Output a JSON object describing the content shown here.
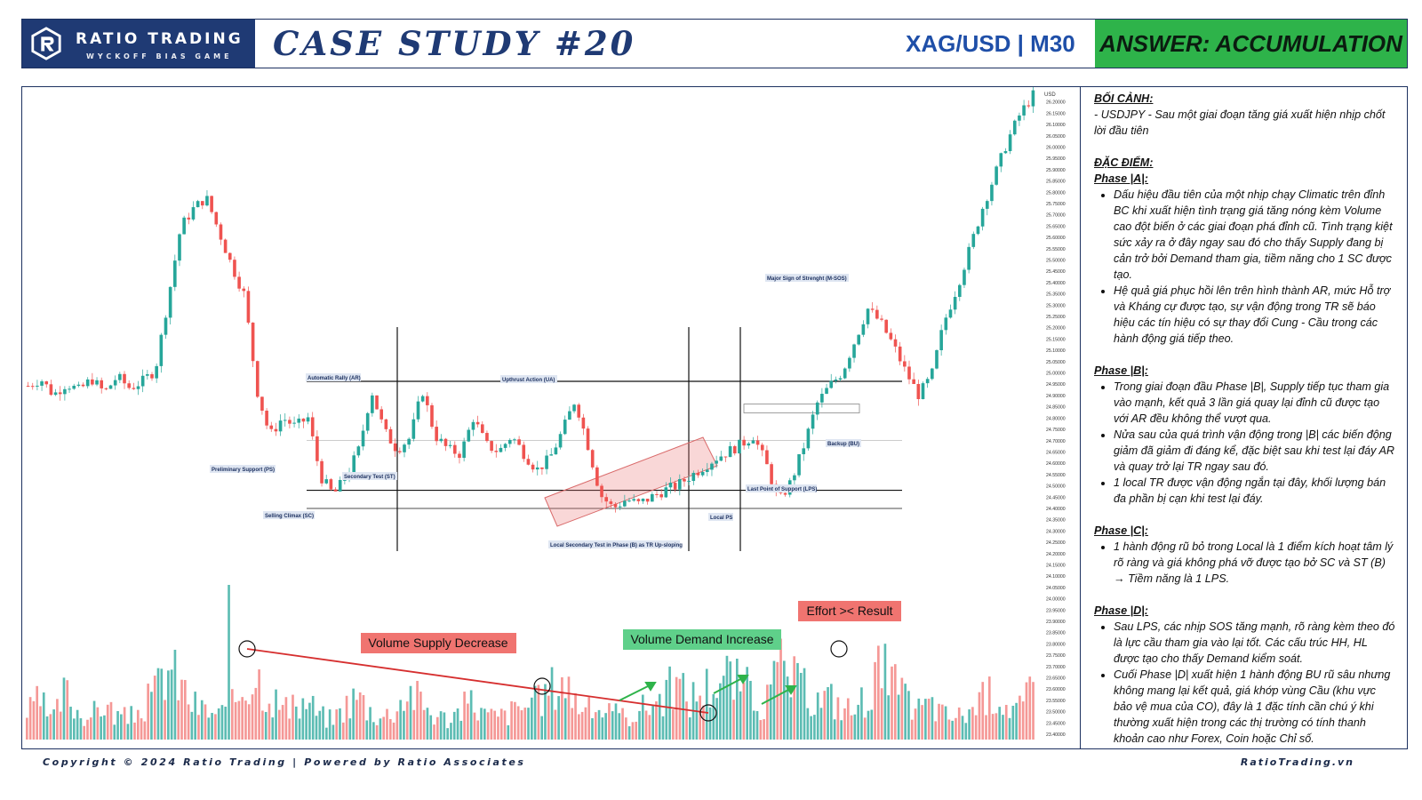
{
  "header": {
    "brand_name": "RATIO TRADING",
    "brand_sub": "WYCKOFF BIAS GAME",
    "case_title": "CASE STUDY #20",
    "symbol": "XAG/USD | M30",
    "answer": "ANSWER: ACCUMULATION"
  },
  "colors": {
    "brand_blue": "#1f3a74",
    "answer_green": "#2eb34a",
    "bull": "#26a69a",
    "bear": "#ef5350",
    "label_red": "#f07470",
    "label_green": "#5fd08a"
  },
  "chart_data": {
    "type": "candlestick",
    "price_axis_unit": "USD",
    "ylim": [
      23.4,
      26.25
    ],
    "y_ticks": [
      "26.20000",
      "26.15000",
      "26.10000",
      "26.05000",
      "26.00000",
      "25.95000",
      "25.90000",
      "25.85000",
      "25.80000",
      "25.75000",
      "25.70000",
      "25.65000",
      "25.60000",
      "25.55000",
      "25.50000",
      "25.45000",
      "25.40000",
      "25.35000",
      "25.30000",
      "25.25000",
      "25.20000",
      "25.15000",
      "25.10000",
      "25.05000",
      "25.00000",
      "24.95000",
      "24.90000",
      "24.85000",
      "24.80000",
      "24.75000",
      "24.70000",
      "24.65000",
      "24.60000",
      "24.55000",
      "24.50000",
      "24.45000",
      "24.40000",
      "24.35000",
      "24.30000",
      "24.25000",
      "24.20000",
      "24.15000",
      "24.10000",
      "24.05000",
      "24.00000",
      "23.95000",
      "23.90000",
      "23.85000",
      "23.80000",
      "23.75000",
      "23.70000",
      "23.65000",
      "23.60000",
      "23.55000",
      "23.50000",
      "23.45000",
      "23.40000"
    ],
    "price_path": [
      24.92,
      24.95,
      24.88,
      24.93,
      24.9,
      24.95,
      24.89,
      24.96,
      24.91,
      24.94,
      24.99,
      25.3,
      25.62,
      25.7,
      25.75,
      25.6,
      25.45,
      25.32,
      24.9,
      24.7,
      24.78,
      24.74,
      24.78,
      24.52,
      24.44,
      24.52,
      24.64,
      24.9,
      24.72,
      24.64,
      24.69,
      24.9,
      24.7,
      24.64,
      24.62,
      24.78,
      24.66,
      24.63,
      24.7,
      24.62,
      24.55,
      24.6,
      24.72,
      24.86,
      24.66,
      24.44,
      24.38,
      24.42,
      24.4,
      24.43,
      24.46,
      24.48,
      24.52,
      24.56,
      24.6,
      24.63,
      24.66,
      24.7,
      24.58,
      24.41,
      24.5,
      24.66,
      24.84,
      24.92,
      24.98,
      25.12,
      25.26,
      25.2,
      25.1,
      24.98,
      24.88,
      24.96,
      25.2,
      25.35,
      25.52,
      25.7,
      25.85,
      26.0,
      26.12,
      26.2
    ],
    "resistance_level": 24.94,
    "support_level": 24.46,
    "low_support_level": 24.38,
    "mid_level": 24.68,
    "volume_values": [
      32,
      48,
      22,
      60,
      35,
      28,
      45,
      30,
      26,
      38,
      55,
      92,
      70,
      44,
      36,
      30,
      40,
      68,
      82,
      58,
      40,
      36,
      48,
      30,
      25,
      42,
      55,
      35,
      28,
      40,
      62,
      45,
      30,
      26,
      36,
      48,
      30,
      28,
      34,
      42,
      45,
      60,
      78,
      52,
      35,
      40,
      30,
      28,
      36,
      45,
      55,
      68,
      50,
      62,
      72,
      80,
      66,
      58,
      40,
      90,
      75,
      60,
      48,
      52,
      40,
      36,
      58,
      88,
      70,
      46,
      38,
      44,
      30,
      28,
      36,
      48,
      60,
      42,
      38,
      62
    ],
    "annotations": {
      "ar": "Automatic Rally (AR)",
      "ps": "Preliminary Support (PS)",
      "sc": "Selling Climax (SC)",
      "st": "Secondary Test (ST)",
      "ua": "Upthrust Action (UA)",
      "lst": "Local Secondary Test in Phase (B) as TR Up-sloping",
      "lps_local": "Local PS",
      "lps": "Last Point of Support (LPS)",
      "msos": "Major Sign of Strenght (M-SOS)",
      "bu": "Backup (BU)"
    },
    "volume_labels": {
      "supply": "Volume Supply Decrease",
      "demand": "Volume Demand Increase",
      "effort": "Effort >< Result"
    }
  },
  "notes": {
    "context_title": "BỐI CẢNH:",
    "context_text": " - USDJPY - Sau một giai đoạn tăng giá xuất hiện nhịp chốt lời đầu tiên",
    "features_title": "ĐẶC ĐIỂM:",
    "phase_a_title": "Phase |A|:",
    "phase_a": [
      "Dấu hiệu đầu tiên của một nhịp chạy Climatic trên đỉnh BC khi xuất hiện tình trạng giá tăng nóng kèm Volume cao đột biến ở các giai đoạn phá đỉnh cũ. Tình trạng kiệt sức xảy ra ở đây ngay sau đó cho thấy Supply đang bị cản trở bởi Demand tham gia, tiềm năng cho 1 SC được tạo.",
      "Hệ quả giá phục hồi lên trên hình thành AR, mức Hỗ trợ và Kháng cự được tạo, sự vận động trong TR sẽ báo hiệu các tín hiệu có sự thay đổi Cung - Cầu trong các hành động giá tiếp theo."
    ],
    "phase_b_title": "Phase |B|:",
    "phase_b": [
      "Trong giai đoạn đầu Phase |B|, Supply tiếp tục tham gia vào mạnh, kết quả 3 lần giá quay lại đỉnh cũ được tạo với AR đều không thể vượt qua.",
      "Nửa sau của quá trình vận động trong |B| các biến động giảm đã giảm đi đáng kể, đặc biệt sau khi test lại đáy AR và quay trở lại TR ngay sau đó.",
      "1 local TR được vận động ngắn tại đây, khối lượng bán đa phần bị cạn khi test lại đáy."
    ],
    "phase_c_title": "Phase |C|:",
    "phase_c": [
      "1 hành động rũ bỏ trong Local là 1 điểm kích hoạt tâm lý rõ ràng và giá không phá vỡ được tạo bở SC và ST (B) → Tiềm năng là 1 LPS."
    ],
    "phase_d_title": "Phase |D|:",
    "phase_d": [
      "Sau LPS, các nhịp SOS tăng mạnh, rõ ràng kèm theo đó là lực cầu tham gia vào lại tốt. Các cấu trúc HH, HL được tạo cho thấy Demand kiểm soát.",
      "Cuối Phase |D| xuất hiện 1 hành động BU rũ sâu nhưng không mang lại kết quả, giá khớp vùng Cầu (khu vực bảo vệ mua của CO), đây là 1 đặc tính cần chú ý khi thường xuất hiện trong các thị trường có tính thanh khoản cao như Forex, Coin hoặc Chỉ số."
    ]
  },
  "footer": {
    "copyright": "Copyright © 2024 Ratio Trading | Powered by Ratio Associates",
    "site": "RatioTrading.vn"
  }
}
